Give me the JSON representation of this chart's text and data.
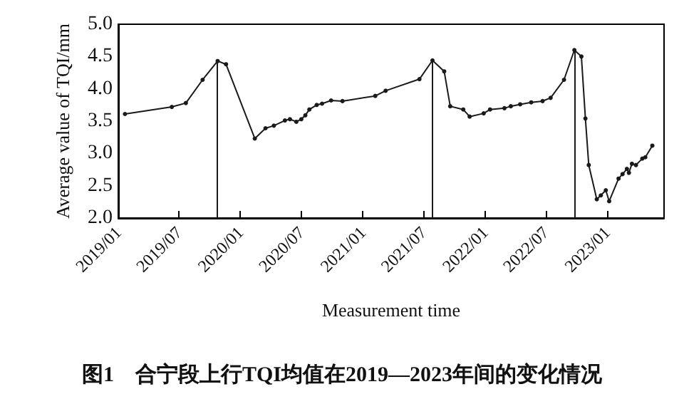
{
  "chart_data": {
    "type": "line",
    "title": "图1　合宁段上行TQI均值在2019—2023年间的变化情况",
    "xlabel": "Measurement time",
    "ylabel": "Average value of TQI/mm",
    "x": [
      "2019-01-21",
      "2019-06-10",
      "2019-07-22",
      "2019-09-10",
      "2019-10-25",
      "2019-11-19",
      "2020-02-13",
      "2020-03-16",
      "2020-04-10",
      "2020-05-13",
      "2020-05-28",
      "2020-06-16",
      "2020-07-01",
      "2020-07-13",
      "2020-07-25",
      "2020-08-16",
      "2020-09-01",
      "2020-09-28",
      "2020-11-01",
      "2021-02-07",
      "2021-03-10",
      "2021-06-19",
      "2021-07-28",
      "2021-09-01",
      "2021-09-19",
      "2021-10-28",
      "2021-11-16",
      "2021-12-28",
      "2022-01-16",
      "2022-02-28",
      "2022-03-19",
      "2022-04-16",
      "2022-05-19",
      "2022-06-22",
      "2022-07-16",
      "2022-08-25",
      "2022-09-25",
      "2022-10-16",
      "2022-10-28",
      "2022-11-07",
      "2022-12-01",
      "2022-12-13",
      "2022-12-28",
      "2023-01-07",
      "2023-02-04",
      "2023-02-16",
      "2023-03-01",
      "2023-03-07",
      "2023-03-16",
      "2023-03-28",
      "2023-04-16",
      "2023-04-25",
      "2023-05-16"
    ],
    "series": [
      {
        "color": "#1a1a1a",
        "values": [
          3.61,
          3.72,
          3.78,
          4.14,
          4.43,
          4.38,
          3.23,
          3.39,
          3.43,
          3.51,
          3.53,
          3.49,
          3.53,
          3.59,
          3.68,
          3.75,
          3.77,
          3.82,
          3.81,
          3.89,
          3.97,
          4.15,
          4.44,
          4.27,
          3.73,
          3.68,
          3.57,
          3.62,
          3.68,
          3.7,
          3.73,
          3.76,
          3.79,
          3.81,
          3.86,
          4.14,
          4.6,
          4.5,
          3.54,
          2.82,
          2.29,
          2.35,
          2.43,
          2.26,
          2.61,
          2.68,
          2.76,
          2.7,
          2.84,
          2.82,
          2.92,
          2.94,
          3.12
        ]
      }
    ],
    "xlim": [
      "2019-01-01",
      "2023-06-20"
    ],
    "xticks": [
      {
        "value": "2019-01-01",
        "label": "2019/01"
      },
      {
        "value": "2019-07-01",
        "label": "2019/07"
      },
      {
        "value": "2020-01-01",
        "label": "2020/01"
      },
      {
        "value": "2020-07-01",
        "label": "2020/07"
      },
      {
        "value": "2021-01-01",
        "label": "2021/01"
      },
      {
        "value": "2021-07-01",
        "label": "2021/07"
      },
      {
        "value": "2022-01-01",
        "label": "2022/01"
      },
      {
        "value": "2022-07-01",
        "label": "2022/07"
      },
      {
        "value": "2023-01-01",
        "label": "2023/01"
      }
    ],
    "ylim": [
      2.0,
      5.0
    ],
    "yticks": [
      {
        "value": 2,
        "label": "2.0"
      },
      {
        "value": 2.5,
        "label": "2.5"
      },
      {
        "value": 3,
        "label": "3.0"
      },
      {
        "value": 3.5,
        "label": "3.5"
      },
      {
        "value": 4,
        "label": "4.0"
      },
      {
        "value": 4.5,
        "label": "4.5"
      },
      {
        "value": 5,
        "label": "5.0"
      }
    ],
    "ref_lines": [
      {
        "axis": "x",
        "value": "2019-10-25",
        "color": "#1a1a1a"
      },
      {
        "axis": "x",
        "value": "2021-07-28",
        "color": "#1a1a1a"
      },
      {
        "axis": "x",
        "value": "2022-09-25",
        "color": "#1a1a1a"
      }
    ],
    "marker": "circle",
    "line_style": "solid"
  }
}
